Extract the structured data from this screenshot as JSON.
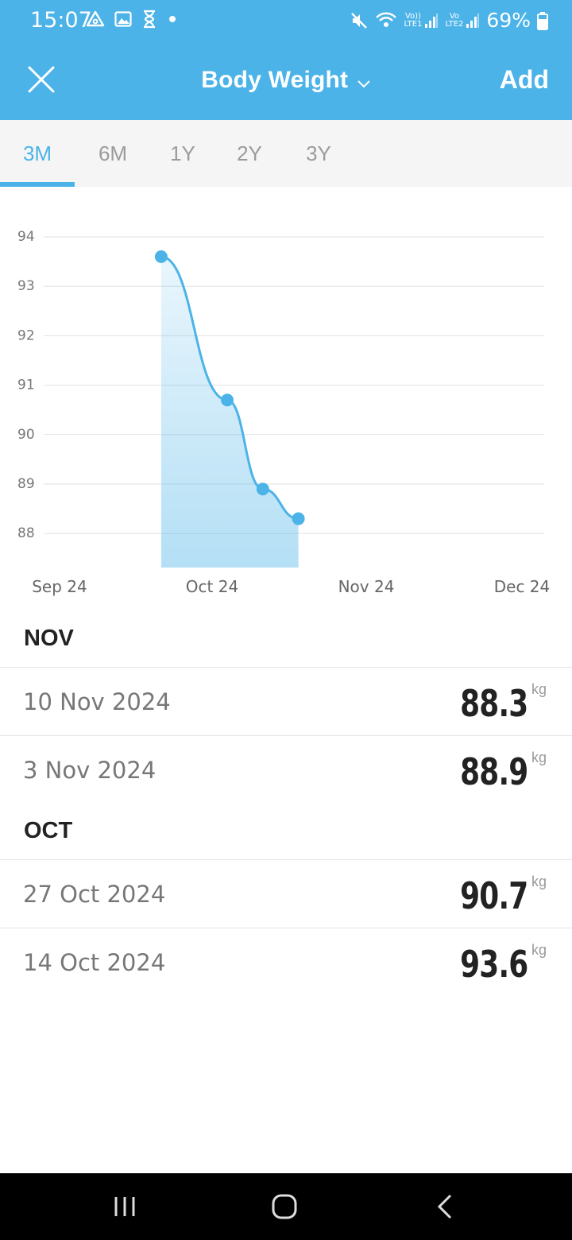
{
  "status": {
    "time": "15:07",
    "battery": "69%",
    "sim1": "LTE1",
    "sim1_top": "Vo))",
    "sim2": "LTE2",
    "sim2_top": "Vo"
  },
  "header": {
    "title": "Body Weight",
    "add_label": "Add"
  },
  "tabs": [
    {
      "label": "3M",
      "active": true
    },
    {
      "label": "6M",
      "active": false
    },
    {
      "label": "1Y",
      "active": false
    },
    {
      "label": "2Y",
      "active": false
    },
    {
      "label": "3Y",
      "active": false
    }
  ],
  "chart_data": {
    "type": "area",
    "ylim": [
      87.5,
      94
    ],
    "yticks": [
      94,
      93,
      92,
      91,
      90,
      89,
      88
    ],
    "xlabels": [
      "Sep 24",
      "Oct 24",
      "Nov 24",
      "Dec 24"
    ],
    "series": [
      {
        "points": [
          {
            "date": "14 Oct 2024",
            "value": 93.6
          },
          {
            "date": "27 Oct 2024",
            "value": 90.7
          },
          {
            "date": "3 Nov 2024",
            "value": 88.9
          },
          {
            "date": "10 Nov 2024",
            "value": 88.3
          }
        ]
      }
    ],
    "color": "#4cb3e8",
    "grid": true
  },
  "sections": [
    {
      "title": "NOV",
      "entries": [
        {
          "date": "10 Nov 2024",
          "value": "88.3",
          "unit": "kg"
        },
        {
          "date": "3 Nov 2024",
          "value": "88.9",
          "unit": "kg"
        }
      ]
    },
    {
      "title": "OCT",
      "entries": [
        {
          "date": "27 Oct 2024",
          "value": "90.7",
          "unit": "kg"
        },
        {
          "date": "14 Oct 2024",
          "value": "93.6",
          "unit": "kg"
        }
      ]
    }
  ]
}
